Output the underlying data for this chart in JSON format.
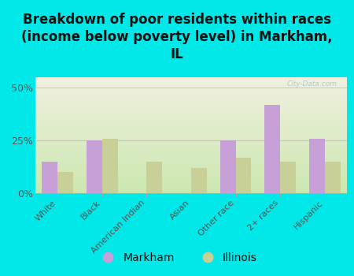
{
  "title": "Breakdown of poor residents within races\n(income below poverty level) in Markham,\nIL",
  "categories": [
    "White",
    "Black",
    "American Indian",
    "Asian",
    "Other race",
    "2+ races",
    "Hispanic"
  ],
  "markham": [
    15,
    25,
    0,
    0,
    25,
    42,
    26
  ],
  "illinois": [
    10,
    26,
    15,
    12,
    17,
    15,
    15
  ],
  "markham_color": "#c8a0d8",
  "illinois_color": "#c8d098",
  "background_color": "#00e8e8",
  "plot_bg_top": "#cce8b0",
  "plot_bg_bottom": "#f0f0e0",
  "yticks": [
    0,
    25,
    50
  ],
  "ylim": [
    0,
    55
  ],
  "watermark": "City-Data.com",
  "legend_markham": "Markham",
  "legend_illinois": "Illinois",
  "title_fontsize": 12,
  "bar_width": 0.35,
  "grid_color": "#bbbbaa",
  "title_color": "#111111"
}
